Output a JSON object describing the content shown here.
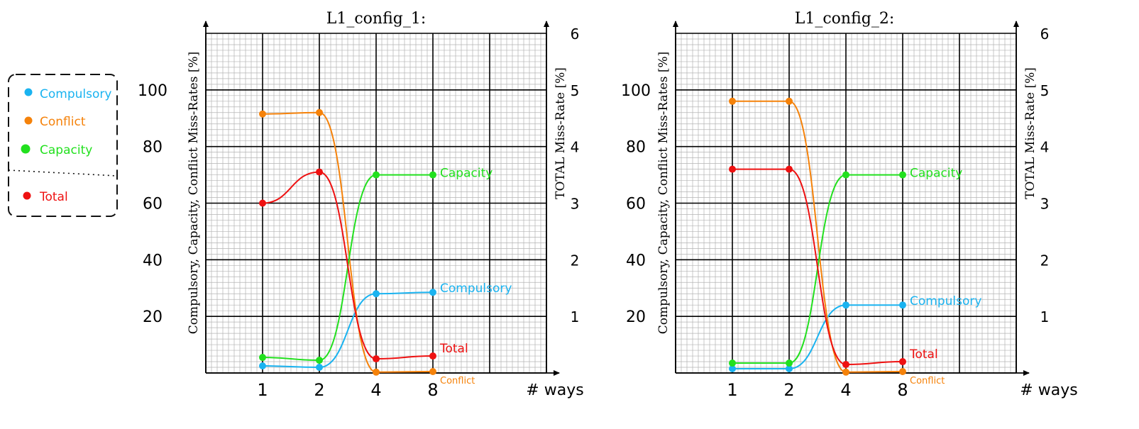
{
  "legend": {
    "items": [
      {
        "label": "Compulsory",
        "color": "#1ab3f0"
      },
      {
        "label": "Conflict",
        "color": "#f5820a"
      },
      {
        "label": "Capacity",
        "color": "#22e01e"
      },
      {
        "label": "Total",
        "color": "#ee1111"
      }
    ]
  },
  "colors": {
    "compulsory": "#1ab3f0",
    "conflict": "#f5820a",
    "capacity": "#22e01e",
    "total": "#ee1111",
    "minor_grid": "#b4b4b4",
    "major_grid": "#000000"
  },
  "chart_data": [
    {
      "type": "line",
      "title": "L1_config_1:",
      "xlabel": "# ways",
      "ylabel_left": "Compulsory, Capacity, Conflict Miss-Rates [%]",
      "ylabel_right": "TOTAL Miss-Rate [%]",
      "categories": [
        "1",
        "2",
        "4",
        "8"
      ],
      "left_ticks": [
        "20",
        "40",
        "60",
        "80",
        "100"
      ],
      "right_ticks": [
        "1",
        "2",
        "3",
        "4",
        "5",
        "6"
      ],
      "ylim_left": [
        0,
        120
      ],
      "ylim_right": [
        0,
        6
      ],
      "grid": true,
      "series": [
        {
          "name": "Compulsory",
          "axis": "left",
          "values": [
            2.5,
            2.0,
            28.0,
            28.5
          ]
        },
        {
          "name": "Conflict",
          "axis": "left",
          "values": [
            91.5,
            92.0,
            0.3,
            0.5
          ]
        },
        {
          "name": "Capacity",
          "axis": "left",
          "values": [
            5.5,
            4.5,
            70.0,
            70.0
          ]
        },
        {
          "name": "Total",
          "axis": "right",
          "values": [
            3.0,
            3.55,
            0.25,
            0.3
          ]
        }
      ],
      "end_labels": [
        "Capacity",
        "Compulsory",
        "Total",
        "Conflict"
      ]
    },
    {
      "type": "line",
      "title": "L1_config_2:",
      "xlabel": "# ways",
      "ylabel_left": "Compulsory, Capacity, Conflict Miss-Rates [%]",
      "ylabel_right": "TOTAL Miss-Rate [%]",
      "categories": [
        "1",
        "2",
        "4",
        "8"
      ],
      "left_ticks": [
        "20",
        "40",
        "60",
        "80",
        "100"
      ],
      "right_ticks": [
        "1",
        "2",
        "3",
        "4",
        "5",
        "6"
      ],
      "ylim_left": [
        0,
        120
      ],
      "ylim_right": [
        0,
        6
      ],
      "grid": true,
      "series": [
        {
          "name": "Compulsory",
          "axis": "left",
          "values": [
            1.5,
            1.5,
            24.0,
            24.0
          ]
        },
        {
          "name": "Conflict",
          "axis": "left",
          "values": [
            96.0,
            96.0,
            0.3,
            0.5
          ]
        },
        {
          "name": "Capacity",
          "axis": "left",
          "values": [
            3.5,
            3.5,
            70.0,
            70.0
          ]
        },
        {
          "name": "Total",
          "axis": "right",
          "values": [
            3.6,
            3.6,
            0.15,
            0.2
          ]
        }
      ],
      "end_labels": [
        "Capacity",
        "Compulsory",
        "Total",
        "Conflict"
      ]
    }
  ]
}
